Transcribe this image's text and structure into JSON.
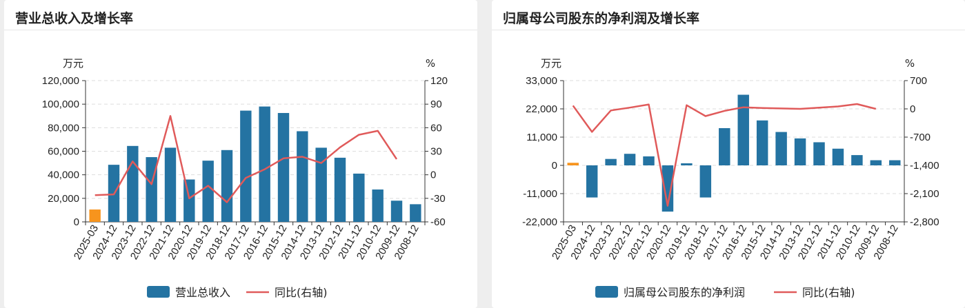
{
  "colors": {
    "bar": "#2473a2",
    "bar_highlight": "#f7941d",
    "line": "#e05a5a",
    "grid": "#dddddd"
  },
  "chart_data": [
    {
      "type": "bar+line",
      "title": "营业总收入及增长率",
      "categories": [
        "2025-03",
        "2024-12",
        "2023-12",
        "2022-12",
        "2021-12",
        "2020-12",
        "2019-12",
        "2018-12",
        "2017-12",
        "2016-12",
        "2015-12",
        "2014-12",
        "2013-12",
        "2012-12",
        "2011-12",
        "2010-12",
        "2009-12",
        "2008-12"
      ],
      "highlight_index": 0,
      "left_unit": "万元",
      "right_unit": "%",
      "left_axis": {
        "min": 0,
        "max": 120000,
        "ticks": [
          0,
          20000,
          40000,
          60000,
          80000,
          100000,
          120000
        ],
        "tick_labels": [
          "0",
          "20,000",
          "40,000",
          "60,000",
          "80,000",
          "100,000",
          "120,000"
        ]
      },
      "right_axis": {
        "min": -60,
        "max": 120,
        "ticks": [
          -60,
          -30,
          0,
          30,
          60,
          90,
          120
        ],
        "tick_labels": [
          "-60",
          "-30",
          "0",
          "30",
          "60",
          "90",
          "120"
        ]
      },
      "series": [
        {
          "name": "营业总收入",
          "type": "bar",
          "axis": "left",
          "values": [
            10500,
            48500,
            64500,
            55000,
            63000,
            36000,
            52000,
            61000,
            94500,
            98000,
            92500,
            77000,
            63000,
            54500,
            41000,
            27500,
            18000,
            15000
          ]
        },
        {
          "name": "同比(右轴)",
          "type": "line",
          "axis": "right",
          "values": [
            -26,
            -25,
            17,
            -12,
            75,
            -30,
            -14,
            -35,
            -4,
            7,
            21,
            23,
            15,
            35,
            51,
            56,
            20,
            null
          ]
        }
      ]
    },
    {
      "type": "bar+line",
      "title": "归属母公司股东的净利润及增长率",
      "categories": [
        "2025-03",
        "2024-12",
        "2023-12",
        "2022-12",
        "2021-12",
        "2020-12",
        "2019-12",
        "2018-12",
        "2017-12",
        "2016-12",
        "2015-12",
        "2014-12",
        "2013-12",
        "2012-12",
        "2011-12",
        "2010-12",
        "2009-12",
        "2008-12"
      ],
      "highlight_index": 0,
      "left_unit": "万元",
      "right_unit": "%",
      "left_axis": {
        "min": -22000,
        "max": 33000,
        "ticks": [
          -22000,
          -11000,
          0,
          11000,
          22000,
          33000
        ],
        "tick_labels": [
          "-22,000",
          "-11,000",
          "0",
          "11,000",
          "22,000",
          "33,000"
        ]
      },
      "right_axis": {
        "min": -2800,
        "max": 700,
        "ticks": [
          -2800,
          -2100,
          -1400,
          -700,
          0,
          700
        ],
        "tick_labels": [
          "-2,800",
          "-2,100",
          "-1,400",
          "-700",
          "0",
          "700"
        ]
      },
      "series": [
        {
          "name": "归属母公司股东的净利润",
          "type": "bar",
          "axis": "left",
          "values": [
            1000,
            -12500,
            2500,
            4500,
            3500,
            -18000,
            800,
            -12500,
            14500,
            27500,
            17500,
            13000,
            10500,
            9000,
            6500,
            4000,
            2000,
            2000
          ]
        },
        {
          "name": "同比(右轴)",
          "type": "line",
          "axis": "right",
          "values": [
            80,
            -570,
            -40,
            30,
            110,
            -2400,
            90,
            -180,
            -50,
            40,
            20,
            10,
            0,
            30,
            60,
            120,
            0,
            null
          ]
        }
      ]
    }
  ]
}
